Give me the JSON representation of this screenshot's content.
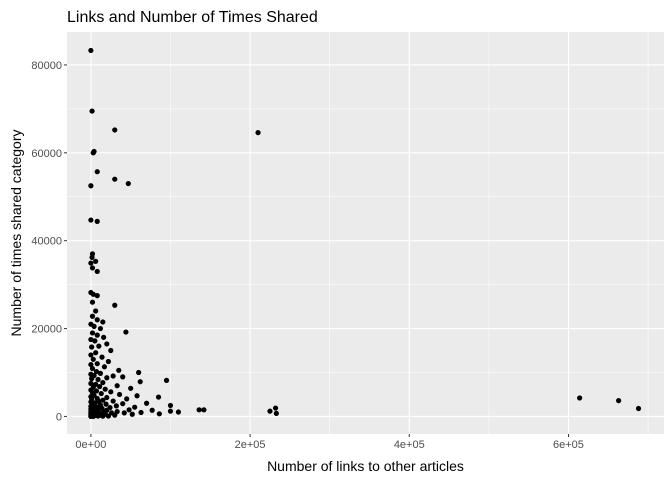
{
  "chart_data": {
    "type": "scatter",
    "title": "Links and Number of Times Shared",
    "xlabel": "Number of links to other articles",
    "ylabel": "Number of times shared category",
    "xlim": [
      -30000,
      720000
    ],
    "ylim": [
      -4000,
      87500
    ],
    "x_ticks": [
      0,
      200000,
      400000,
      600000
    ],
    "x_tick_labels": [
      "0e+00",
      "2e+05",
      "4e+05",
      "6e+05"
    ],
    "y_ticks": [
      0,
      20000,
      40000,
      60000,
      80000
    ],
    "y_tick_labels": [
      "0",
      "20000",
      "40000",
      "60000",
      "80000"
    ],
    "grid": true,
    "background": "#ebebeb",
    "grid_color": "#ffffff",
    "point_color": "#000000",
    "points": [
      [
        0,
        83300
      ],
      [
        1500,
        69500
      ],
      [
        4000,
        60300
      ],
      [
        3000,
        60000
      ],
      [
        30000,
        65200
      ],
      [
        210000,
        64600
      ],
      [
        8000,
        55700
      ],
      [
        0,
        52500
      ],
      [
        30000,
        54000
      ],
      [
        47000,
        53000
      ],
      [
        0,
        44700
      ],
      [
        8000,
        44400
      ],
      [
        2000,
        37000
      ],
      [
        1500,
        36200
      ],
      [
        6000,
        35300
      ],
      [
        0,
        34900
      ],
      [
        2000,
        33800
      ],
      [
        8000,
        33000
      ],
      [
        0,
        28200
      ],
      [
        3000,
        27800
      ],
      [
        8000,
        27500
      ],
      [
        2000,
        26000
      ],
      [
        30000,
        25300
      ],
      [
        6000,
        24000
      ],
      [
        2000,
        22800
      ],
      [
        8000,
        22000
      ],
      [
        15000,
        21500
      ],
      [
        0,
        21000
      ],
      [
        4000,
        20500
      ],
      [
        12000,
        20000
      ],
      [
        44000,
        19200
      ],
      [
        2000,
        19000
      ],
      [
        8000,
        18500
      ],
      [
        16000,
        18000
      ],
      [
        0,
        17500
      ],
      [
        5000,
        17200
      ],
      [
        20000,
        16500
      ],
      [
        10000,
        16000
      ],
      [
        1000,
        15800
      ],
      [
        25000,
        15000
      ],
      [
        6000,
        14500
      ],
      [
        0,
        14000
      ],
      [
        14000,
        13500
      ],
      [
        3000,
        13000
      ],
      [
        22000,
        12500
      ],
      [
        8000,
        12000
      ],
      [
        0,
        11800
      ],
      [
        17000,
        11300
      ],
      [
        2000,
        10900
      ],
      [
        35000,
        10500
      ],
      [
        7000,
        10200
      ],
      [
        60000,
        10000
      ],
      [
        12000,
        9800
      ],
      [
        0,
        9600
      ],
      [
        4000,
        9300
      ],
      [
        28000,
        9200
      ],
      [
        40000,
        9000
      ],
      [
        20000,
        8800
      ],
      [
        1000,
        8600
      ],
      [
        9000,
        8400
      ],
      [
        95000,
        8200
      ],
      [
        62000,
        7900
      ],
      [
        15000,
        7700
      ],
      [
        0,
        7500
      ],
      [
        6000,
        7300
      ],
      [
        33000,
        7000
      ],
      [
        11000,
        6800
      ],
      [
        3000,
        6600
      ],
      [
        50000,
        6400
      ],
      [
        18000,
        6200
      ],
      [
        0,
        6000
      ],
      [
        7000,
        5800
      ],
      [
        25000,
        5600
      ],
      [
        2000,
        5400
      ],
      [
        13000,
        5200
      ],
      [
        36000,
        5000
      ],
      [
        4000,
        4800
      ],
      [
        58000,
        4700
      ],
      [
        0,
        4500
      ],
      [
        85000,
        4400
      ],
      [
        20000,
        4300
      ],
      [
        8000,
        4100
      ],
      [
        45000,
        4000
      ],
      [
        1000,
        3900
      ],
      [
        15000,
        3700
      ],
      [
        28000,
        3500
      ],
      [
        614000,
        4200
      ],
      [
        663000,
        3600
      ],
      [
        10000,
        3400
      ],
      [
        0,
        3300
      ],
      [
        5000,
        3100
      ],
      [
        70000,
        3000
      ],
      [
        40000,
        2900
      ],
      [
        19000,
        2800
      ],
      [
        2000,
        2700
      ],
      [
        12000,
        2600
      ],
      [
        100000,
        2500
      ],
      [
        32000,
        2400
      ],
      [
        0,
        2300
      ],
      [
        7000,
        2200
      ],
      [
        55000,
        2100
      ],
      [
        24000,
        2000
      ],
      [
        3000,
        1900
      ],
      [
        232000,
        1900
      ],
      [
        688000,
        1800
      ],
      [
        14000,
        1800
      ],
      [
        0,
        1700
      ],
      [
        9000,
        1600
      ],
      [
        48000,
        1500
      ],
      [
        136000,
        1500
      ],
      [
        142000,
        1500
      ],
      [
        77000,
        1400
      ],
      [
        20000,
        1400
      ],
      [
        1000,
        1300
      ],
      [
        225000,
        1200
      ],
      [
        100000,
        1200
      ],
      [
        6000,
        1200
      ],
      [
        33000,
        1100
      ],
      [
        0,
        1100
      ],
      [
        110000,
        1000
      ],
      [
        16000,
        1000
      ],
      [
        63000,
        900
      ],
      [
        4000,
        900
      ],
      [
        42000,
        800
      ],
      [
        26000,
        800
      ],
      [
        233000,
        700
      ],
      [
        0,
        700
      ],
      [
        11000,
        700
      ],
      [
        86000,
        600
      ],
      [
        2000,
        600
      ],
      [
        52000,
        500
      ],
      [
        18000,
        500
      ],
      [
        0,
        400
      ],
      [
        7000,
        400
      ],
      [
        30000,
        300
      ],
      [
        13000,
        300
      ],
      [
        1000,
        200
      ],
      [
        5000,
        200
      ],
      [
        0,
        100
      ],
      [
        22000,
        100
      ],
      [
        9000,
        100
      ],
      [
        3000,
        0
      ],
      [
        0,
        0
      ],
      [
        15000,
        50
      ]
    ]
  }
}
